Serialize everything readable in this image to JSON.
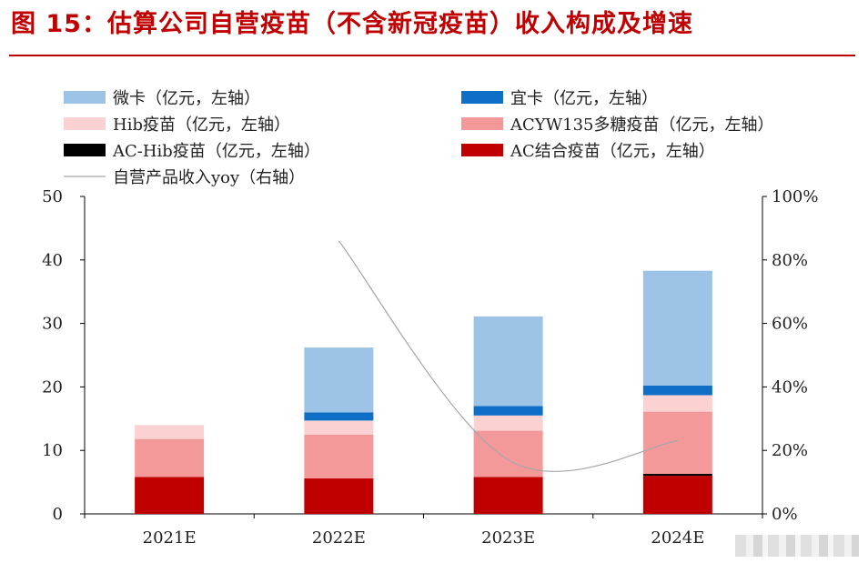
{
  "title": "图 15：估算公司自营疫苗（不含新冠疫苗）收入构成及增速",
  "chart_data": {
    "type": "bar",
    "stacked": true,
    "categories": [
      "2021E",
      "2022E",
      "2023E",
      "2024E"
    ],
    "series": [
      {
        "name": "AC结合疫苗（亿元，左轴）",
        "color": "#c00000",
        "values": [
          5.8,
          5.6,
          5.8,
          6.0
        ]
      },
      {
        "name": "AC-Hib疫苗（亿元，左轴）",
        "color": "#000000",
        "values": [
          0,
          0,
          0,
          0.3
        ]
      },
      {
        "name": "ACYW135多糖疫苗（亿元，左轴）",
        "color": "#f4999a",
        "values": [
          6.0,
          6.9,
          7.3,
          9.8
        ]
      },
      {
        "name": "Hib疫苗（亿元，左轴）",
        "color": "#fcd1d1",
        "values": [
          2.2,
          2.2,
          2.4,
          2.6
        ]
      },
      {
        "name": "宜卡（亿元，左轴）",
        "color": "#0f6fc6",
        "values": [
          0,
          1.3,
          1.5,
          1.5
        ]
      },
      {
        "name": "微卡（亿元，左轴）",
        "color": "#9dc3e6",
        "values": [
          0,
          10.2,
          14.1,
          18.1
        ]
      }
    ],
    "line": {
      "name": "自营产品收入yoy（右轴）",
      "color": "#a6a6a6",
      "values": [
        null,
        86,
        17,
        23
      ]
    },
    "left_axis": {
      "min": 0,
      "max": 50,
      "ticks": [
        "0",
        "10",
        "20",
        "30",
        "40",
        "50"
      ]
    },
    "right_axis": {
      "min": 0,
      "max": 100,
      "ticks": [
        "0%",
        "20%",
        "40%",
        "60%",
        "80%",
        "100%"
      ]
    },
    "legend_position": "top",
    "legend_order": [
      "微卡（亿元，左轴）",
      "宜卡（亿元，左轴）",
      "Hib疫苗（亿元，左轴）",
      "ACYW135多糖疫苗（亿元，左轴）",
      "AC-Hib疫苗（亿元，左轴）",
      "AC结合疫苗（亿元，左轴）",
      "自营产品收入yoy（右轴）"
    ],
    "grid": false
  }
}
